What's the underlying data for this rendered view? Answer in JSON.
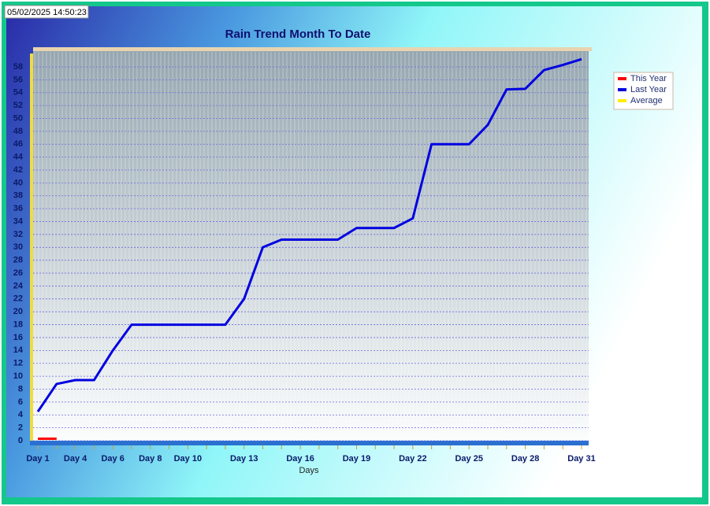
{
  "timestamp": "05/02/2025 14:50:23",
  "chart_data": {
    "type": "line",
    "title": "Rain Trend Month To Date",
    "x_label": "Days",
    "categories": [
      "Day 1",
      null,
      "Day 4",
      null,
      "Day 6",
      null,
      "Day 8",
      null,
      "Day 10",
      null,
      null,
      "Day 13",
      null,
      null,
      "Day 16",
      null,
      null,
      "Day 19",
      null,
      null,
      "Day 22",
      null,
      null,
      "Day 25",
      null,
      null,
      "Day 28",
      null,
      null,
      "Day 31"
    ],
    "series": [
      {
        "name": "This Year",
        "color": "#ff0000",
        "values": [
          0.3,
          0.3,
          null,
          null,
          null,
          null,
          null,
          null,
          null,
          null,
          null,
          null,
          null,
          null,
          null,
          null,
          null,
          null,
          null,
          null,
          null,
          null,
          null,
          null,
          null,
          null,
          null,
          null,
          null,
          null
        ]
      },
      {
        "name": "Last Year",
        "color": "#0000e0",
        "values": [
          4.5,
          8.8,
          9.4,
          9.4,
          14,
          18,
          18,
          18,
          18,
          18,
          18,
          22,
          30,
          31.2,
          31.2,
          31.2,
          31.2,
          33,
          33,
          33,
          34.5,
          46,
          46,
          46,
          49,
          54.5,
          54.6,
          57.5,
          58.3,
          59.2
        ]
      },
      {
        "name": "Average",
        "color": "#ffee00",
        "values": [
          null,
          null,
          null,
          null,
          null,
          null,
          null,
          null,
          null,
          null,
          null,
          null,
          null,
          null,
          null,
          null,
          null,
          null,
          null,
          null,
          null,
          null,
          null,
          null,
          null,
          null,
          null,
          null,
          null,
          null
        ]
      }
    ],
    "ylim": [
      0,
      60
    ],
    "yticks": [
      0,
      2,
      4,
      6,
      8,
      10,
      12,
      14,
      16,
      18,
      20,
      22,
      24,
      26,
      28,
      30,
      32,
      34,
      36,
      38,
      40,
      42,
      44,
      46,
      48,
      50,
      52,
      54,
      56,
      58
    ],
    "grid": true,
    "legend": "right"
  }
}
